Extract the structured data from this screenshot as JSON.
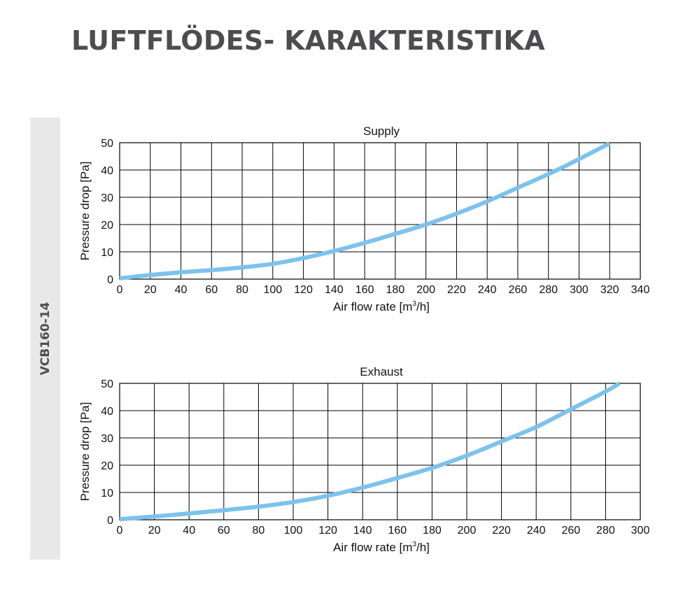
{
  "page": {
    "title": "LUFTFLÖDES- KARAKTERISTIKA",
    "side_label": "VCB160-14"
  },
  "chart_data": [
    {
      "type": "line",
      "title": "Supply",
      "xlabel": "Air flow rate [m³/h]",
      "xlabel_pre": "Air flow rate [m",
      "xlabel_sup": "3",
      "xlabel_post": "/h]",
      "ylabel": "Pressure drop [Pa]",
      "xlim": [
        0,
        340
      ],
      "ylim": [
        0,
        50
      ],
      "xticks": [
        0,
        20,
        40,
        60,
        80,
        100,
        120,
        140,
        160,
        180,
        200,
        220,
        240,
        260,
        280,
        300,
        320,
        340
      ],
      "yticks": [
        0,
        10,
        20,
        30,
        40,
        50
      ],
      "grid": true,
      "line_color": "#7cc3ec",
      "x": [
        0,
        20,
        40,
        60,
        80,
        100,
        120,
        140,
        160,
        180,
        200,
        220,
        240,
        260,
        280,
        300,
        320
      ],
      "y": [
        0.3,
        1.5,
        2.5,
        3.3,
        4.3,
        5.6,
        7.7,
        10.3,
        13.3,
        16.6,
        20.0,
        24.0,
        28.5,
        33.5,
        38.5,
        44.0,
        49.8
      ]
    },
    {
      "type": "line",
      "title": "Exhaust",
      "xlabel": "Air flow rate [m³/h]",
      "xlabel_pre": "Air flow rate [m",
      "xlabel_sup": "3",
      "xlabel_post": "/h]",
      "ylabel": "Pressure drop [Pa]",
      "xlim": [
        0,
        300
      ],
      "ylim": [
        0,
        50
      ],
      "xticks": [
        0,
        20,
        40,
        60,
        80,
        100,
        120,
        140,
        160,
        180,
        200,
        220,
        240,
        260,
        280,
        300
      ],
      "yticks": [
        0,
        10,
        20,
        30,
        40,
        50
      ],
      "grid": true,
      "line_color": "#7cc3ec",
      "x": [
        0,
        20,
        40,
        60,
        80,
        100,
        120,
        140,
        160,
        180,
        200,
        220,
        240,
        260,
        280,
        288
      ],
      "y": [
        0.2,
        1.2,
        2.3,
        3.5,
        4.8,
        6.5,
        8.8,
        11.8,
        15.3,
        19.0,
        23.5,
        28.7,
        34.0,
        40.5,
        47.0,
        50.0
      ]
    }
  ]
}
